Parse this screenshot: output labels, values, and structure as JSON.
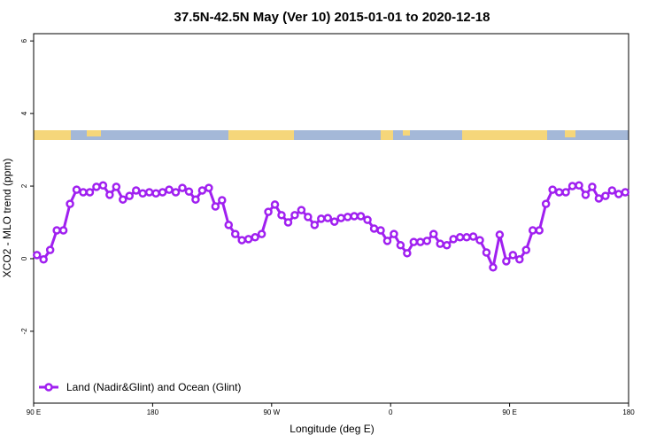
{
  "chart_data": {
    "type": "line",
    "title": "37.5N-42.5N May (Ver 10)   2015-01-01 to 2020-12-18",
    "xlabel": "Longitude (deg E)",
    "ylabel": "XCO2 - MLO trend (ppm)",
    "xlim": [
      90,
      540
    ],
    "ylim": [
      -3.98,
      6.2
    ],
    "xticks": [
      {
        "value": 90,
        "label": "90 E"
      },
      180,
      {
        "value": 270,
        "label": "90 W"
      },
      {
        "value": 360,
        "label": "0"
      },
      {
        "value": 450,
        "label": "90 E"
      },
      {
        "value": 540,
        "label": "180"
      }
    ],
    "yticks": [
      6,
      4,
      2,
      0,
      -2
    ],
    "legend": "bottom-left",
    "x": [
      92.5,
      97.5,
      102.5,
      107.5,
      112.5,
      117.5,
      122.5,
      127.5,
      132.5,
      137.5,
      142.5,
      147.5,
      152.5,
      157.5,
      162.5,
      167.5,
      172.5,
      177.5,
      182.5,
      187.5,
      192.5,
      197.5,
      202.5,
      207.5,
      212.5,
      217.5,
      222.5,
      227.5,
      232.5,
      237.5,
      242.5,
      247.5,
      252.5,
      257.5,
      262.5,
      267.5,
      272.5,
      277.5,
      282.5,
      287.5,
      292.5,
      297.5,
      302.5,
      307.5,
      312.5,
      317.5,
      322.5,
      327.5,
      332.5,
      337.5,
      342.5,
      347.5,
      352.5,
      357.5,
      362.5,
      367.5,
      372.5,
      377.5,
      382.5,
      387.5,
      392.5,
      397.5,
      402.5,
      407.5,
      412.5,
      417.5,
      422.5,
      427.5,
      432.5,
      437.5,
      442.5,
      447.5,
      452.5,
      457.5,
      462.5,
      467.5,
      472.5,
      477.5,
      482.5,
      487.5,
      492.5,
      497.5,
      502.5,
      507.5,
      512.5,
      517.5,
      522.5,
      527.5,
      532.5,
      537.5
    ],
    "series": [
      {
        "name": "Land (Nadir&Glint) and Ocean (Glint)",
        "color": "#a020f0",
        "values": [
          0.1,
          -0.02,
          0.24,
          0.78,
          0.78,
          1.51,
          1.9,
          1.83,
          1.83,
          1.98,
          2.02,
          1.76,
          1.98,
          1.63,
          1.73,
          1.88,
          1.8,
          1.83,
          1.8,
          1.83,
          1.9,
          1.83,
          1.95,
          1.85,
          1.63,
          1.88,
          1.95,
          1.44,
          1.61,
          0.93,
          0.68,
          0.51,
          0.54,
          0.59,
          0.68,
          1.29,
          1.49,
          1.2,
          1.0,
          1.2,
          1.34,
          1.15,
          0.93,
          1.1,
          1.12,
          1.02,
          1.12,
          1.15,
          1.17,
          1.17,
          1.07,
          0.83,
          0.78,
          0.49,
          0.68,
          0.37,
          0.15,
          0.46,
          0.46,
          0.49,
          0.68,
          0.41,
          0.37,
          0.54,
          0.59,
          0.59,
          0.61,
          0.51,
          0.17,
          -0.24,
          0.66,
          -0.07,
          0.1,
          -0.02,
          0.24,
          0.78,
          0.78,
          1.51,
          1.9,
          1.83,
          1.83,
          2.0,
          2.02,
          1.76,
          1.98,
          1.66,
          1.73,
          1.88,
          1.78,
          1.83
        ]
      }
    ]
  }
}
